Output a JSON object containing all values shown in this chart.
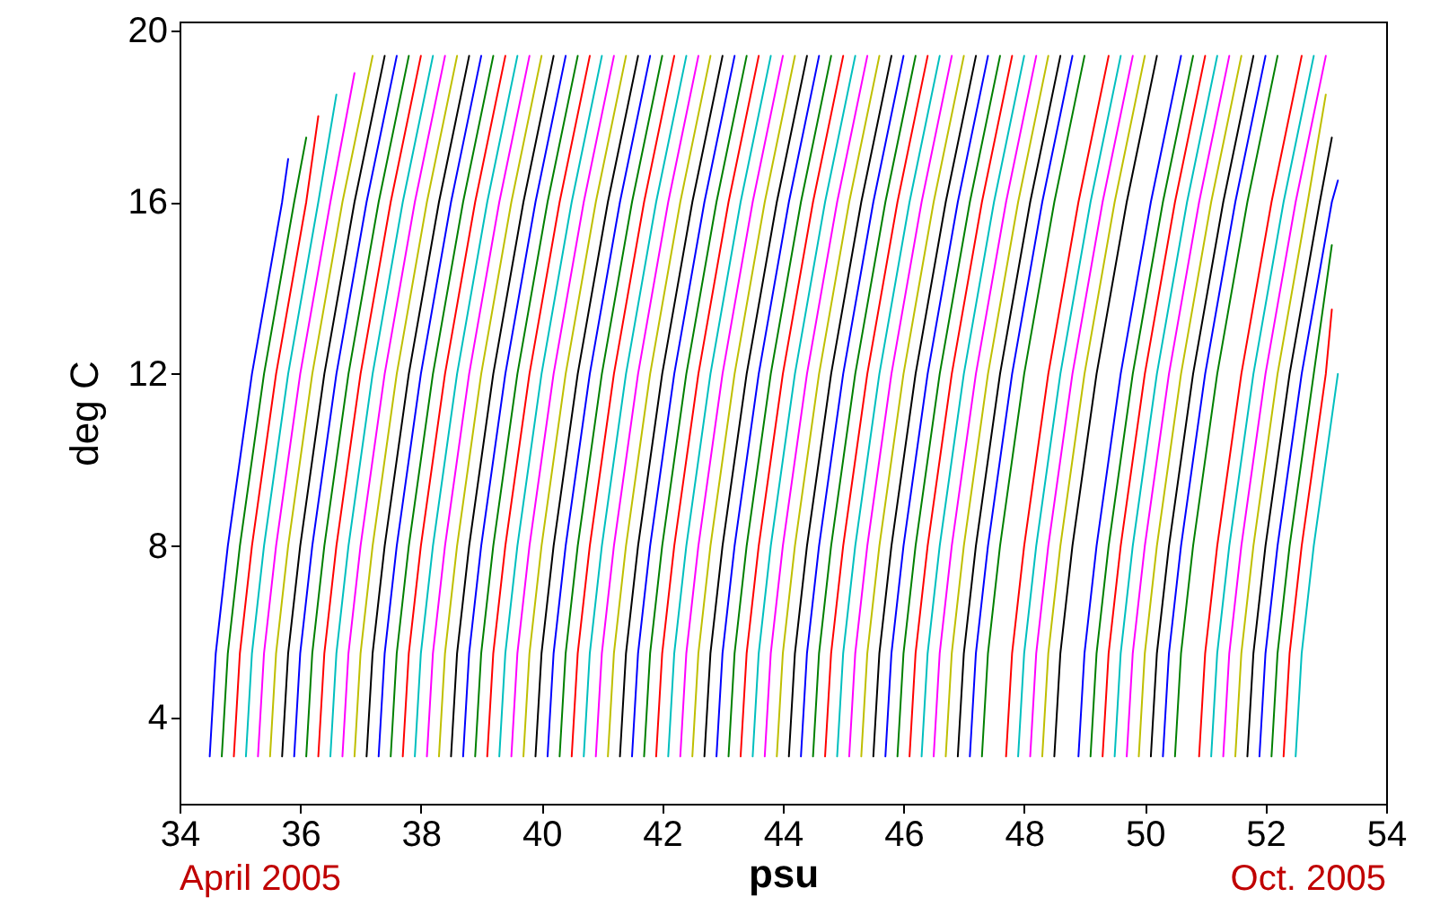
{
  "chart_data": {
    "type": "line",
    "xlabel": "psu",
    "ylabel": "deg C",
    "xlim": [
      34,
      54
    ],
    "xticks": [
      34,
      36,
      38,
      40,
      42,
      44,
      46,
      48,
      50,
      52,
      54
    ],
    "ylim": [
      2,
      20.2
    ],
    "yticks": [
      4,
      8,
      12,
      16,
      20
    ],
    "grid": false,
    "annotations": [
      "April 2005",
      "Oct. 2005"
    ],
    "series": [
      {
        "color": "#0000ff",
        "x": [
          34.5,
          34.6,
          34.8,
          35.2,
          35.7,
          35.8
        ],
        "values": [
          3.1,
          5.5,
          8,
          12,
          16,
          17
        ]
      },
      {
        "color": "#008000",
        "x": [
          34.7,
          34.8,
          35.0,
          35.4,
          35.9,
          36.1
        ],
        "values": [
          3.1,
          5.5,
          8,
          12,
          16,
          17.5
        ]
      },
      {
        "color": "#ff0000",
        "x": [
          34.9,
          35.0,
          35.2,
          35.6,
          36.1,
          36.3
        ],
        "values": [
          3.1,
          5.5,
          8,
          12,
          16,
          18
        ]
      },
      {
        "color": "#00bfbf",
        "x": [
          35.1,
          35.2,
          35.4,
          35.8,
          36.3,
          36.6
        ],
        "values": [
          3.1,
          5.5,
          8,
          12,
          16,
          18.5
        ]
      },
      {
        "color": "#ff00ff",
        "x": [
          35.3,
          35.4,
          35.6,
          36.0,
          36.5,
          36.9
        ],
        "values": [
          3.1,
          5.5,
          8,
          12,
          16,
          19
        ]
      },
      {
        "color": "#bfbf00",
        "x": [
          35.5,
          35.6,
          35.8,
          36.2,
          36.7,
          37.2
        ],
        "values": [
          3.1,
          5.5,
          8,
          12,
          16,
          19.4
        ]
      },
      {
        "color": "#000000",
        "x": [
          35.7,
          35.8,
          36.0,
          36.4,
          36.9,
          37.4
        ],
        "values": [
          3.1,
          5.5,
          8,
          12,
          16,
          19.4
        ]
      },
      {
        "color": "#0000ff",
        "x": [
          35.9,
          36.0,
          36.2,
          36.6,
          37.1,
          37.6
        ],
        "values": [
          3.1,
          5.5,
          8,
          12,
          16,
          19.4
        ]
      },
      {
        "color": "#008000",
        "x": [
          36.1,
          36.2,
          36.4,
          36.8,
          37.3,
          37.8
        ],
        "values": [
          3.1,
          5.5,
          8,
          12,
          16,
          19.4
        ]
      },
      {
        "color": "#ff0000",
        "x": [
          36.3,
          36.4,
          36.6,
          37.0,
          37.5,
          38.0
        ],
        "values": [
          3.1,
          5.5,
          8,
          12,
          16,
          19.4
        ]
      },
      {
        "color": "#00bfbf",
        "x": [
          36.5,
          36.6,
          36.8,
          37.2,
          37.7,
          38.2
        ],
        "values": [
          3.1,
          5.5,
          8,
          12,
          16,
          19.4
        ]
      },
      {
        "color": "#ff00ff",
        "x": [
          36.7,
          36.8,
          37.0,
          37.4,
          37.9,
          38.4
        ],
        "values": [
          3.1,
          5.5,
          8,
          12,
          16,
          19.4
        ]
      },
      {
        "color": "#bfbf00",
        "x": [
          36.9,
          37.0,
          37.2,
          37.6,
          38.1,
          38.6
        ],
        "values": [
          3.1,
          5.5,
          8,
          12,
          16,
          19.4
        ]
      },
      {
        "color": "#000000",
        "x": [
          37.1,
          37.2,
          37.4,
          37.8,
          38.3,
          38.8
        ],
        "values": [
          3.1,
          5.5,
          8,
          12,
          16,
          19.4
        ]
      },
      {
        "color": "#0000ff",
        "x": [
          37.3,
          37.4,
          37.6,
          38.0,
          38.5,
          39.0
        ],
        "values": [
          3.1,
          5.5,
          8,
          12,
          16,
          19.4
        ]
      },
      {
        "color": "#008000",
        "x": [
          37.5,
          37.6,
          37.8,
          38.2,
          38.7,
          39.2
        ],
        "values": [
          3.1,
          5.5,
          8,
          12,
          16,
          19.4
        ]
      },
      {
        "color": "#ff0000",
        "x": [
          37.7,
          37.8,
          38.0,
          38.4,
          38.9,
          39.4
        ],
        "values": [
          3.1,
          5.5,
          8,
          12,
          16,
          19.4
        ]
      },
      {
        "color": "#00bfbf",
        "x": [
          37.9,
          38.0,
          38.2,
          38.6,
          39.1,
          39.6
        ],
        "values": [
          3.1,
          5.5,
          8,
          12,
          16,
          19.4
        ]
      },
      {
        "color": "#ff00ff",
        "x": [
          38.1,
          38.2,
          38.4,
          38.8,
          39.3,
          39.8
        ],
        "values": [
          3.1,
          5.5,
          8,
          12,
          16,
          19.4
        ]
      },
      {
        "color": "#bfbf00",
        "x": [
          38.3,
          38.4,
          38.6,
          39.0,
          39.5,
          40.0
        ],
        "values": [
          3.1,
          5.5,
          8,
          12,
          16,
          19.4
        ]
      },
      {
        "color": "#000000",
        "x": [
          38.5,
          38.6,
          38.8,
          39.2,
          39.7,
          40.2
        ],
        "values": [
          3.1,
          5.5,
          8,
          12,
          16,
          19.4
        ]
      },
      {
        "color": "#0000ff",
        "x": [
          38.7,
          38.8,
          39.0,
          39.4,
          39.9,
          40.4
        ],
        "values": [
          3.1,
          5.5,
          8,
          12,
          16,
          19.4
        ]
      },
      {
        "color": "#008000",
        "x": [
          38.9,
          39.0,
          39.2,
          39.6,
          40.1,
          40.6
        ],
        "values": [
          3.1,
          5.5,
          8,
          12,
          16,
          19.4
        ]
      },
      {
        "color": "#ff0000",
        "x": [
          39.1,
          39.2,
          39.4,
          39.8,
          40.3,
          40.8
        ],
        "values": [
          3.1,
          5.5,
          8,
          12,
          16,
          19.4
        ]
      },
      {
        "color": "#00bfbf",
        "x": [
          39.3,
          39.4,
          39.6,
          40.0,
          40.5,
          41.0
        ],
        "values": [
          3.1,
          5.5,
          8,
          12,
          16,
          19.4
        ]
      },
      {
        "color": "#ff00ff",
        "x": [
          39.5,
          39.6,
          39.8,
          40.2,
          40.7,
          41.2
        ],
        "values": [
          3.1,
          5.5,
          8,
          12,
          16,
          19.4
        ]
      },
      {
        "color": "#bfbf00",
        "x": [
          39.7,
          39.8,
          40.0,
          40.4,
          40.9,
          41.4
        ],
        "values": [
          3.1,
          5.5,
          8,
          12,
          16,
          19.4
        ]
      },
      {
        "color": "#000000",
        "x": [
          39.9,
          40.0,
          40.2,
          40.6,
          41.1,
          41.6
        ],
        "values": [
          3.1,
          5.5,
          8,
          12,
          16,
          19.4
        ]
      },
      {
        "color": "#0000ff",
        "x": [
          40.1,
          40.2,
          40.4,
          40.8,
          41.3,
          41.8
        ],
        "values": [
          3.1,
          5.5,
          8,
          12,
          16,
          19.4
        ]
      },
      {
        "color": "#008000",
        "x": [
          40.3,
          40.4,
          40.6,
          41.0,
          41.5,
          42.0
        ],
        "values": [
          3.1,
          5.5,
          8,
          12,
          16,
          19.4
        ]
      },
      {
        "color": "#ff0000",
        "x": [
          40.5,
          40.6,
          40.8,
          41.2,
          41.7,
          42.2
        ],
        "values": [
          3.1,
          5.5,
          8,
          12,
          16,
          19.4
        ]
      },
      {
        "color": "#00bfbf",
        "x": [
          40.7,
          40.8,
          41.0,
          41.4,
          41.9,
          42.4
        ],
        "values": [
          3.1,
          5.5,
          8,
          12,
          16,
          19.4
        ]
      },
      {
        "color": "#ff00ff",
        "x": [
          40.9,
          41.0,
          41.2,
          41.6,
          42.1,
          42.6
        ],
        "values": [
          3.1,
          5.5,
          8,
          12,
          16,
          19.4
        ]
      },
      {
        "color": "#bfbf00",
        "x": [
          41.1,
          41.2,
          41.4,
          41.8,
          42.3,
          42.8
        ],
        "values": [
          3.1,
          5.5,
          8,
          12,
          16,
          19.4
        ]
      },
      {
        "color": "#000000",
        "x": [
          41.3,
          41.4,
          41.6,
          42.0,
          42.5,
          43.0
        ],
        "values": [
          3.1,
          5.5,
          8,
          12,
          16,
          19.4
        ]
      },
      {
        "color": "#0000ff",
        "x": [
          41.5,
          41.6,
          41.8,
          42.2,
          42.7,
          43.2
        ],
        "values": [
          3.1,
          5.5,
          8,
          12,
          16,
          19.4
        ]
      },
      {
        "color": "#008000",
        "x": [
          41.7,
          41.8,
          42.0,
          42.4,
          42.9,
          43.4
        ],
        "values": [
          3.1,
          5.5,
          8,
          12,
          16,
          19.4
        ]
      },
      {
        "color": "#ff0000",
        "x": [
          41.9,
          42.0,
          42.2,
          42.6,
          43.1,
          43.6
        ],
        "values": [
          3.1,
          5.5,
          8,
          12,
          16,
          19.4
        ]
      },
      {
        "color": "#00bfbf",
        "x": [
          42.1,
          42.2,
          42.4,
          42.8,
          43.3,
          43.8
        ],
        "values": [
          3.1,
          5.5,
          8,
          12,
          16,
          19.4
        ]
      },
      {
        "color": "#ff00ff",
        "x": [
          42.3,
          42.4,
          42.6,
          43.0,
          43.5,
          44.0
        ],
        "values": [
          3.1,
          5.5,
          8,
          12,
          16,
          19.4
        ]
      },
      {
        "color": "#bfbf00",
        "x": [
          42.5,
          42.6,
          42.8,
          43.2,
          43.7,
          44.2
        ],
        "values": [
          3.1,
          5.5,
          8,
          12,
          16,
          19.4
        ]
      },
      {
        "color": "#000000",
        "x": [
          42.7,
          42.8,
          43.0,
          43.4,
          43.9,
          44.4
        ],
        "values": [
          3.1,
          5.5,
          8,
          12,
          16,
          19.4
        ]
      },
      {
        "color": "#0000ff",
        "x": [
          42.9,
          43.0,
          43.2,
          43.6,
          44.1,
          44.6
        ],
        "values": [
          3.1,
          5.5,
          8,
          12,
          16,
          19.4
        ]
      },
      {
        "color": "#008000",
        "x": [
          43.1,
          43.2,
          43.4,
          43.8,
          44.3,
          44.8
        ],
        "values": [
          3.1,
          5.5,
          8,
          12,
          16,
          19.4
        ]
      },
      {
        "color": "#ff0000",
        "x": [
          43.3,
          43.4,
          43.6,
          44.0,
          44.5,
          45.0
        ],
        "values": [
          3.1,
          5.5,
          8,
          12,
          16,
          19.4
        ]
      },
      {
        "color": "#00bfbf",
        "x": [
          43.5,
          43.6,
          43.8,
          44.2,
          44.7,
          45.2
        ],
        "values": [
          3.1,
          5.5,
          8,
          12,
          16,
          19.4
        ]
      },
      {
        "color": "#ff00ff",
        "x": [
          43.7,
          43.8,
          44.0,
          44.4,
          44.9,
          45.4
        ],
        "values": [
          3.1,
          5.5,
          8,
          12,
          16,
          19.4
        ]
      },
      {
        "color": "#bfbf00",
        "x": [
          43.9,
          44.0,
          44.2,
          44.6,
          45.1,
          45.6
        ],
        "values": [
          3.1,
          5.5,
          8,
          12,
          16,
          19.4
        ]
      },
      {
        "color": "#000000",
        "x": [
          44.1,
          44.2,
          44.4,
          44.8,
          45.3,
          45.8
        ],
        "values": [
          3.1,
          5.5,
          8,
          12,
          16,
          19.4
        ]
      },
      {
        "color": "#0000ff",
        "x": [
          44.3,
          44.4,
          44.6,
          45.0,
          45.5,
          46.0
        ],
        "values": [
          3.1,
          5.5,
          8,
          12,
          16,
          19.4
        ]
      },
      {
        "color": "#008000",
        "x": [
          44.5,
          44.6,
          44.8,
          45.2,
          45.7,
          46.2
        ],
        "values": [
          3.1,
          5.5,
          8,
          12,
          16,
          19.4
        ]
      },
      {
        "color": "#ff0000",
        "x": [
          44.7,
          44.8,
          45.0,
          45.4,
          45.9,
          46.4
        ],
        "values": [
          3.1,
          5.5,
          8,
          12,
          16,
          19.4
        ]
      },
      {
        "color": "#00bfbf",
        "x": [
          44.9,
          45.0,
          45.2,
          45.6,
          46.1,
          46.6
        ],
        "values": [
          3.1,
          5.5,
          8,
          12,
          16,
          19.4
        ]
      },
      {
        "color": "#ff00ff",
        "x": [
          45.1,
          45.2,
          45.4,
          45.8,
          46.3,
          46.8
        ],
        "values": [
          3.1,
          5.5,
          8,
          12,
          16,
          19.4
        ]
      },
      {
        "color": "#bfbf00",
        "x": [
          45.3,
          45.4,
          45.6,
          46.0,
          46.5,
          47.0
        ],
        "values": [
          3.1,
          5.5,
          8,
          12,
          16,
          19.4
        ]
      },
      {
        "color": "#000000",
        "x": [
          45.5,
          45.6,
          45.8,
          46.2,
          46.7,
          47.2
        ],
        "values": [
          3.1,
          5.5,
          8,
          12,
          16,
          19.4
        ]
      },
      {
        "color": "#0000ff",
        "x": [
          45.7,
          45.8,
          46.0,
          46.4,
          46.9,
          47.4
        ],
        "values": [
          3.1,
          5.5,
          8,
          12,
          16,
          19.4
        ]
      },
      {
        "color": "#008000",
        "x": [
          45.9,
          46.0,
          46.2,
          46.6,
          47.1,
          47.6
        ],
        "values": [
          3.1,
          5.5,
          8,
          12,
          16,
          19.4
        ]
      },
      {
        "color": "#ff0000",
        "x": [
          46.1,
          46.2,
          46.4,
          46.8,
          47.3,
          47.8
        ],
        "values": [
          3.1,
          5.5,
          8,
          12,
          16,
          19.4
        ]
      },
      {
        "color": "#00bfbf",
        "x": [
          46.3,
          46.4,
          46.6,
          47.0,
          47.5,
          48.0
        ],
        "values": [
          3.1,
          5.5,
          8,
          12,
          16,
          19.4
        ]
      },
      {
        "color": "#ff00ff",
        "x": [
          46.5,
          46.6,
          46.8,
          47.2,
          47.7,
          48.2
        ],
        "values": [
          3.1,
          5.5,
          8,
          12,
          16,
          19.4
        ]
      },
      {
        "color": "#bfbf00",
        "x": [
          46.7,
          46.8,
          47.0,
          47.4,
          47.9,
          48.4
        ],
        "values": [
          3.1,
          5.5,
          8,
          12,
          16,
          19.4
        ]
      },
      {
        "color": "#000000",
        "x": [
          46.9,
          47.0,
          47.2,
          47.6,
          48.1,
          48.6
        ],
        "values": [
          3.1,
          5.5,
          8,
          12,
          16,
          19.4
        ]
      },
      {
        "color": "#0000ff",
        "x": [
          47.1,
          47.2,
          47.4,
          47.8,
          48.3,
          48.8
        ],
        "values": [
          3.1,
          5.5,
          8,
          12,
          16,
          19.4
        ]
      },
      {
        "color": "#008000",
        "x": [
          47.3,
          47.4,
          47.6,
          48.0,
          48.5,
          49.0
        ],
        "values": [
          3.1,
          5.5,
          8,
          12,
          16,
          19.4
        ]
      },
      {
        "color": "#ff0000",
        "x": [
          47.7,
          47.8,
          48.0,
          48.4,
          48.9,
          49.4
        ],
        "values": [
          3.1,
          5.5,
          8,
          12,
          16,
          19.4
        ]
      },
      {
        "color": "#00bfbf",
        "x": [
          47.9,
          48.0,
          48.2,
          48.6,
          49.1,
          49.6
        ],
        "values": [
          3.1,
          5.5,
          8,
          12,
          16,
          19.4
        ]
      },
      {
        "color": "#ff00ff",
        "x": [
          48.1,
          48.2,
          48.4,
          48.8,
          49.3,
          49.8
        ],
        "values": [
          3.1,
          5.5,
          8,
          12,
          16,
          19.4
        ]
      },
      {
        "color": "#bfbf00",
        "x": [
          48.3,
          48.4,
          48.6,
          49.0,
          49.5,
          50.0
        ],
        "values": [
          3.1,
          5.5,
          8,
          12,
          16,
          19.4
        ]
      },
      {
        "color": "#000000",
        "x": [
          48.5,
          48.6,
          48.8,
          49.2,
          49.7,
          50.2
        ],
        "values": [
          3.1,
          5.5,
          8,
          12,
          16,
          19.4
        ]
      },
      {
        "color": "#0000ff",
        "x": [
          48.9,
          49.0,
          49.2,
          49.6,
          50.1,
          50.6
        ],
        "values": [
          3.1,
          5.5,
          8,
          12,
          16,
          19.4
        ]
      },
      {
        "color": "#008000",
        "x": [
          49.1,
          49.2,
          49.4,
          49.8,
          50.3,
          50.8
        ],
        "values": [
          3.1,
          5.5,
          8,
          12,
          16,
          19.4
        ]
      },
      {
        "color": "#ff0000",
        "x": [
          49.3,
          49.4,
          49.6,
          50.0,
          50.5,
          51.0
        ],
        "values": [
          3.1,
          5.5,
          8,
          12,
          16,
          19.4
        ]
      },
      {
        "color": "#00bfbf",
        "x": [
          49.5,
          49.6,
          49.8,
          50.2,
          50.7,
          51.2
        ],
        "values": [
          3.1,
          5.5,
          8,
          12,
          16,
          19.4
        ]
      },
      {
        "color": "#ff00ff",
        "x": [
          49.7,
          49.8,
          50.0,
          50.4,
          50.9,
          51.4
        ],
        "values": [
          3.1,
          5.5,
          8,
          12,
          16,
          19.4
        ]
      },
      {
        "color": "#bfbf00",
        "x": [
          49.9,
          50.0,
          50.2,
          50.6,
          51.1,
          51.6
        ],
        "values": [
          3.1,
          5.5,
          8,
          12,
          16,
          19.4
        ]
      },
      {
        "color": "#000000",
        "x": [
          50.1,
          50.2,
          50.4,
          50.8,
          51.3,
          51.8
        ],
        "values": [
          3.1,
          5.5,
          8,
          12,
          16,
          19.4
        ]
      },
      {
        "color": "#0000ff",
        "x": [
          50.3,
          50.4,
          50.6,
          51.0,
          51.5,
          52.0
        ],
        "values": [
          3.1,
          5.5,
          8,
          12,
          16,
          19.4
        ]
      },
      {
        "color": "#008000",
        "x": [
          50.5,
          50.6,
          50.8,
          51.2,
          51.7,
          52.2
        ],
        "values": [
          3.1,
          5.5,
          8,
          12,
          16,
          19.4
        ]
      },
      {
        "color": "#ff0000",
        "x": [
          50.9,
          51.0,
          51.2,
          51.6,
          52.1,
          52.6
        ],
        "values": [
          3.1,
          5.5,
          8,
          12,
          16,
          19.4
        ]
      },
      {
        "color": "#00bfbf",
        "x": [
          51.1,
          51.2,
          51.4,
          51.8,
          52.3,
          52.8
        ],
        "values": [
          3.1,
          5.5,
          8,
          12,
          16,
          19.4
        ]
      },
      {
        "color": "#ff00ff",
        "x": [
          51.3,
          51.4,
          51.6,
          52.0,
          52.5,
          53.0
        ],
        "values": [
          3.1,
          5.5,
          8,
          12,
          16,
          19.4
        ]
      },
      {
        "color": "#bfbf00",
        "x": [
          51.5,
          51.6,
          51.8,
          52.2,
          52.7,
          53.0
        ],
        "values": [
          3.1,
          5.5,
          8,
          12,
          16,
          18.5
        ]
      },
      {
        "color": "#000000",
        "x": [
          51.7,
          51.8,
          52.0,
          52.4,
          52.9,
          53.1
        ],
        "values": [
          3.1,
          5.5,
          8,
          12,
          16,
          17.5
        ]
      },
      {
        "color": "#0000ff",
        "x": [
          51.9,
          52.0,
          52.2,
          52.6,
          53.1,
          53.2
        ],
        "values": [
          3.1,
          5.5,
          8,
          12,
          16,
          16.5
        ]
      },
      {
        "color": "#008000",
        "x": [
          52.1,
          52.2,
          52.4,
          52.8,
          53.1
        ],
        "values": [
          3.1,
          5.5,
          8,
          12,
          15
        ]
      },
      {
        "color": "#ff0000",
        "x": [
          52.3,
          52.4,
          52.6,
          53.0,
          53.1
        ],
        "values": [
          3.1,
          5.5,
          8,
          12,
          13.5
        ]
      },
      {
        "color": "#00bfbf",
        "x": [
          52.5,
          52.6,
          52.8,
          53.2
        ],
        "values": [
          3.1,
          5.5,
          8,
          12
        ]
      }
    ]
  }
}
